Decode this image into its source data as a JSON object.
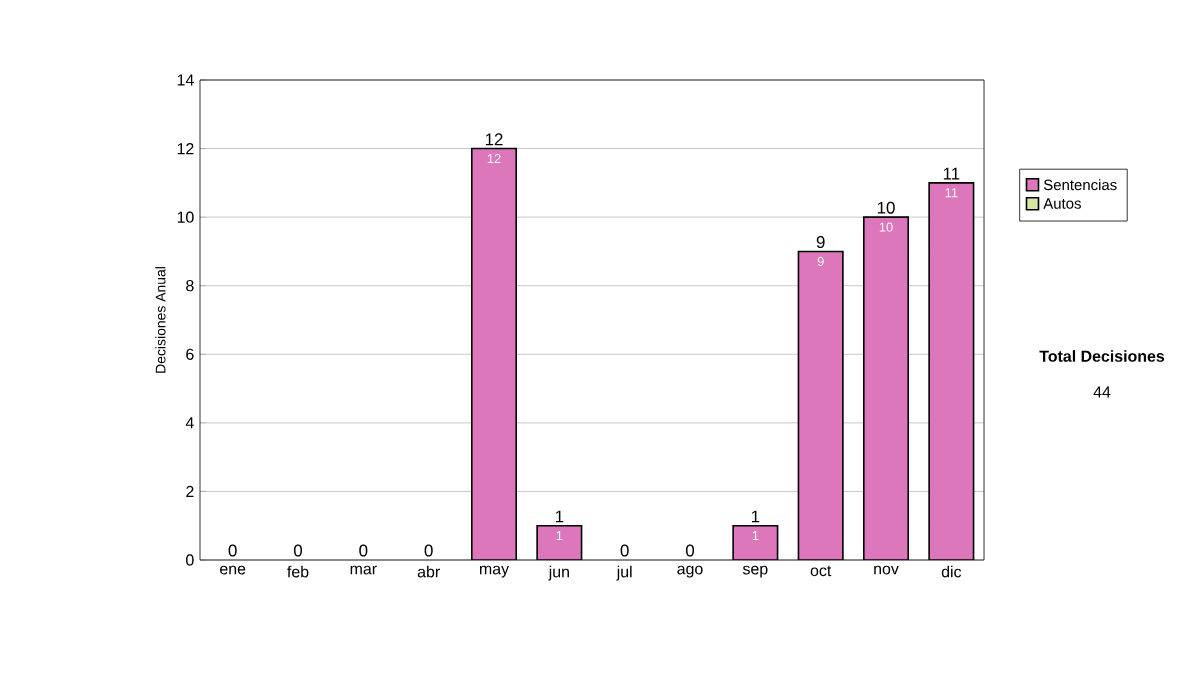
{
  "chart_data": {
    "type": "bar",
    "stacked": true,
    "categories": [
      "ene",
      "feb",
      "mar",
      "abr",
      "may",
      "jun",
      "jul",
      "ago",
      "sep",
      "oct",
      "nov",
      "dic"
    ],
    "series": [
      {
        "name": "Sentencias",
        "color": "#dd77bb",
        "values": [
          0,
          0,
          0,
          0,
          12,
          1,
          0,
          0,
          1,
          9,
          10,
          11
        ],
        "value_labels": [
          null,
          null,
          null,
          null,
          "12",
          "1",
          null,
          null,
          "1",
          "9",
          "10",
          "11"
        ]
      },
      {
        "name": "Autos",
        "color": "#d8e8a0",
        "values": [
          0,
          0,
          0,
          0,
          0,
          0,
          0,
          0,
          0,
          0,
          0,
          0
        ]
      }
    ],
    "totals": [
      "0",
      "0",
      "0",
      "0",
      "12",
      "1",
      "0",
      "0",
      "1",
      "9",
      "10",
      "11"
    ],
    "ylabel": "Decisiones Anual",
    "ylim": [
      0,
      14
    ],
    "yticks": [
      0,
      2,
      4,
      6,
      8,
      10,
      12,
      14
    ],
    "grid": "y",
    "legend": "right",
    "annotations": [
      "Total Decisiones",
      "44"
    ]
  }
}
